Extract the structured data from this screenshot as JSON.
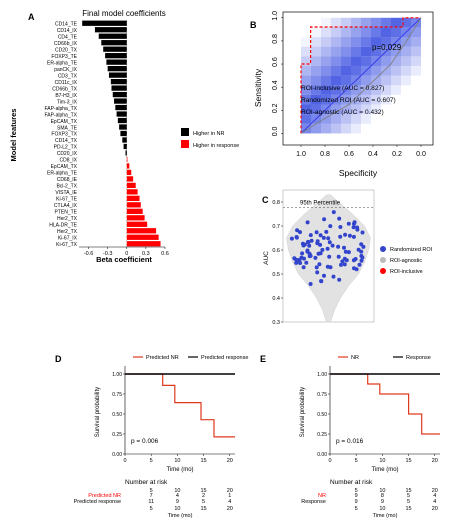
{
  "chart_data": [
    {
      "panel": "A",
      "type": "bar",
      "orientation": "horizontal",
      "title": "Final model coefficients",
      "xlabel": "Beta coefficient",
      "ylabel": "Model features",
      "xlim": [
        -0.75,
        0.6
      ],
      "xticks": [
        "-0.6",
        "-0.3",
        "0",
        "0.3",
        "0.6"
      ],
      "xtick_values": [
        -0.6,
        -0.3,
        0,
        0.3,
        0.6
      ],
      "categories": [
        "CD14_TE",
        "CD14_IX",
        "CD4_TE",
        "CD66b_IX",
        "CD20_TX",
        "FOXP3_TE",
        "ER-alpha_TE",
        "panCK_IX",
        "CD3_TX",
        "CD11c_IX",
        "CD66b_TX",
        "B7-H3_IX",
        "Tim-3_IX",
        "FAP-alpha_TX",
        "FAP-alpha_TX",
        "EpCAM_TX",
        "SMA_TE",
        "FOXP3_TX",
        "CD14_TX",
        "PD-L2_TX",
        "CD20_IX",
        "CD8_IX",
        "EpCAM_TX",
        "ER-alpha_TE",
        "CD68_IE",
        "Bcl-2_TX",
        "VISTA_IE",
        "Ki-67_TE",
        "CTLA4_IX",
        "PTEN_TE",
        "Her2_TX",
        "HLA-DR_TE",
        "Her2_TX",
        "Ki-67_IX",
        "Ki-67_TX"
      ],
      "values": [
        -0.7,
        -0.5,
        -0.44,
        -0.4,
        -0.37,
        -0.34,
        -0.32,
        -0.3,
        -0.28,
        -0.25,
        -0.24,
        -0.22,
        -0.2,
        -0.18,
        -0.16,
        -0.14,
        -0.12,
        -0.1,
        -0.07,
        -0.05,
        -0.02,
        0.01,
        0.04,
        0.07,
        0.1,
        0.14,
        0.17,
        0.2,
        0.22,
        0.25,
        0.28,
        0.32,
        0.46,
        0.5,
        0.53
      ],
      "legend": [
        {
          "label": "Higher in NR",
          "color": "#000000"
        },
        {
          "label": "Higher in response",
          "color": "#ff0000"
        }
      ],
      "legend_position": "right"
    },
    {
      "panel": "B",
      "type": "line",
      "xlabel": "Specificity",
      "ylabel": "Sensitivity",
      "xticks": [
        "1.0",
        "0.8",
        "0.6",
        "0.4",
        "0.2",
        "0.0"
      ],
      "xtick_values": [
        1.0,
        0.8,
        0.6,
        0.4,
        0.2,
        0.0
      ],
      "yticks": [
        "0.0",
        "0.2",
        "0.4",
        "0.6",
        "0.8",
        "1.0"
      ],
      "ytick_values": [
        0.0,
        0.2,
        0.4,
        0.6,
        0.8,
        1.0
      ],
      "xlim": [
        1.15,
        -0.1
      ],
      "ylim": [
        -0.1,
        1.05
      ],
      "annotation": "p=0.029",
      "series": [
        {
          "name": "ROI-inclusive (AUC = 0.827)",
          "color": "#ff0000",
          "style": "dashed",
          "x": [
            1.0,
            1.0,
            0.92,
            0.92,
            0.55,
            0.55,
            0.15,
            0.15,
            0.02,
            0.0
          ],
          "y": [
            0.0,
            0.6,
            0.6,
            0.92,
            0.92,
            0.92,
            0.92,
            1.0,
            1.0,
            1.0
          ]
        },
        {
          "name": "Randomized ROI (AUC = 0.607)",
          "color": "#3333ee",
          "style": "solid",
          "x": [
            1.0,
            0.0
          ],
          "y": [
            0.0,
            1.0
          ]
        },
        {
          "name": "ROI-agnostic (AUC = 0.432)",
          "color": "#7f7f7f",
          "style": "solid",
          "x": [
            1.0,
            0.85,
            0.6,
            0.4,
            0.25,
            0.12,
            0.0
          ],
          "y": [
            0.0,
            0.1,
            0.25,
            0.45,
            0.6,
            0.8,
            1.0
          ]
        }
      ],
      "reference_line": {
        "x": [
          1.0,
          0.0
        ],
        "y": [
          0.0,
          1.0
        ],
        "color": "#999999"
      },
      "legend_position": "bottom-right"
    },
    {
      "panel": "C",
      "type": "scatter",
      "ylabel": "AUC",
      "yticks": [
        "0.3",
        "0.4",
        "0.5",
        "0.6",
        "0.7",
        "0.8"
      ],
      "ytick_values": [
        0.3,
        0.4,
        0.5,
        0.6,
        0.7,
        0.8
      ],
      "ylim": [
        0.3,
        0.85
      ],
      "annotation": "95th Percentile",
      "percentile_95": 0.777,
      "series": [
        {
          "name": "Randomized ROI",
          "color": "#3344cc"
        },
        {
          "name": "ROI-agnostic",
          "color": "#bbbbbb"
        },
        {
          "name": "ROI-inclusive",
          "color": "#ff0000"
        }
      ],
      "legend_position": "right"
    },
    {
      "panel": "D",
      "type": "line",
      "xlabel": "Time (mo)",
      "ylabel": "Survival probability",
      "xticks": [
        "0",
        "5",
        "10",
        "15",
        "20"
      ],
      "xtick_values": [
        0,
        5,
        10,
        15,
        20
      ],
      "yticks": [
        "0.00",
        "0.25",
        "0.50",
        "0.75",
        "1.00"
      ],
      "ytick_values": [
        0,
        0.25,
        0.5,
        0.75,
        1.0
      ],
      "xlim": [
        0,
        21
      ],
      "ylim": [
        0,
        1.05
      ],
      "annotation": "p = 0.006",
      "series": [
        {
          "name": "Predicted NR",
          "color": "#e03a1e",
          "x": [
            0,
            7.2,
            7.2,
            9.5,
            9.5,
            14.5,
            14.5,
            17,
            17,
            21
          ],
          "y": [
            1,
            1,
            0.857,
            0.857,
            0.643,
            0.643,
            0.429,
            0.429,
            0.214,
            0.214
          ]
        },
        {
          "name": "Predicted response",
          "color": "#000000",
          "x": [
            0,
            21
          ],
          "y": [
            1,
            1
          ]
        }
      ],
      "risk_table": {
        "title": "Number at risk",
        "xlabel": "Time (mo)",
        "rows": [
          {
            "label": "Predicted NR",
            "color": "#ff0000",
            "values": [
              "7",
              "4",
              "2",
              "1"
            ]
          },
          {
            "label": "Predicted response",
            "color": "#000000",
            "values": [
              "11",
              "9",
              "5",
              "4"
            ]
          }
        ],
        "col_labels_top": [
          "5",
          "10",
          "15",
          "20"
        ],
        "col_labels_bottom": [
          "5",
          "10",
          "15",
          "20"
        ]
      }
    },
    {
      "panel": "E",
      "type": "line",
      "xlabel": "Time (mo)",
      "ylabel": "Survival probability",
      "xticks": [
        "0",
        "5",
        "10",
        "15",
        "20"
      ],
      "xtick_values": [
        0,
        5,
        10,
        15,
        20
      ],
      "yticks": [
        "0.00",
        "0.25",
        "0.50",
        "0.75",
        "1.00"
      ],
      "ytick_values": [
        0,
        0.25,
        0.5,
        0.75,
        1.0
      ],
      "xlim": [
        0,
        21
      ],
      "ylim": [
        0,
        1.05
      ],
      "annotation": "p = 0.016",
      "series": [
        {
          "name": "NR",
          "color": "#e03a1e",
          "x": [
            0,
            7.2,
            7.2,
            9.5,
            9.5,
            15,
            15,
            17.5,
            17.5,
            21
          ],
          "y": [
            1,
            1,
            0.875,
            0.875,
            0.75,
            0.75,
            0.5,
            0.5,
            0.25,
            0.25
          ]
        },
        {
          "name": "Response",
          "color": "#000000",
          "x": [
            0,
            21
          ],
          "y": [
            1,
            1
          ]
        }
      ],
      "risk_table": {
        "title": "Number at risk",
        "xlabel": "Time (mo)",
        "rows": [
          {
            "label": "NR",
            "color": "#ff0000",
            "values": [
              "9",
              "8",
              "5",
              "4"
            ]
          },
          {
            "label": "Response",
            "color": "#000000",
            "values": [
              "9",
              "9",
              "5",
              "4"
            ]
          }
        ],
        "col_labels_top": [
          "5",
          "10",
          "15",
          "20"
        ],
        "col_labels_bottom": [
          "5",
          "10",
          "15",
          "20"
        ]
      }
    }
  ]
}
